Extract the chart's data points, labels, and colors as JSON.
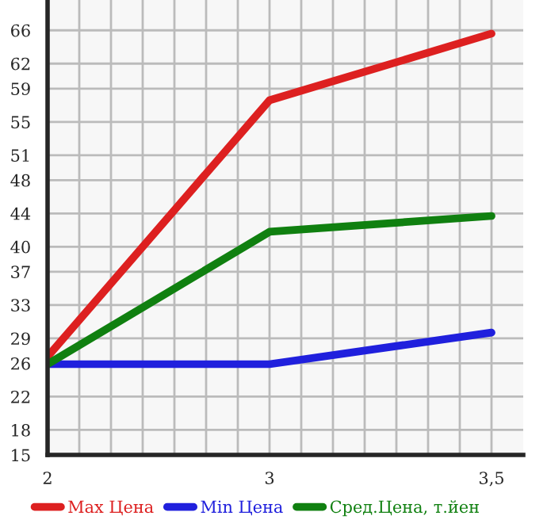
{
  "chart_data": {
    "type": "line",
    "categories": [
      "2",
      "3",
      "3,5"
    ],
    "series": [
      {
        "name": "Max Цена",
        "color": "#dd2020",
        "values": [
          26.8,
          57.6,
          65.6
        ]
      },
      {
        "name": "Min Цена",
        "color": "#2020dd",
        "values": [
          25.9,
          25.9,
          29.7
        ]
      },
      {
        "name": "Сред.Цена, т.йен",
        "color": "#108010",
        "values": [
          25.9,
          41.8,
          43.7
        ]
      }
    ],
    "ylim": [
      15,
      69.64
    ],
    "yticks": [
      15,
      18,
      22,
      26,
      29,
      33,
      37,
      40,
      44,
      48,
      51,
      55,
      59,
      62,
      66
    ],
    "grid": true,
    "legend": "bottom",
    "marker": "none",
    "line_style": "solid"
  }
}
